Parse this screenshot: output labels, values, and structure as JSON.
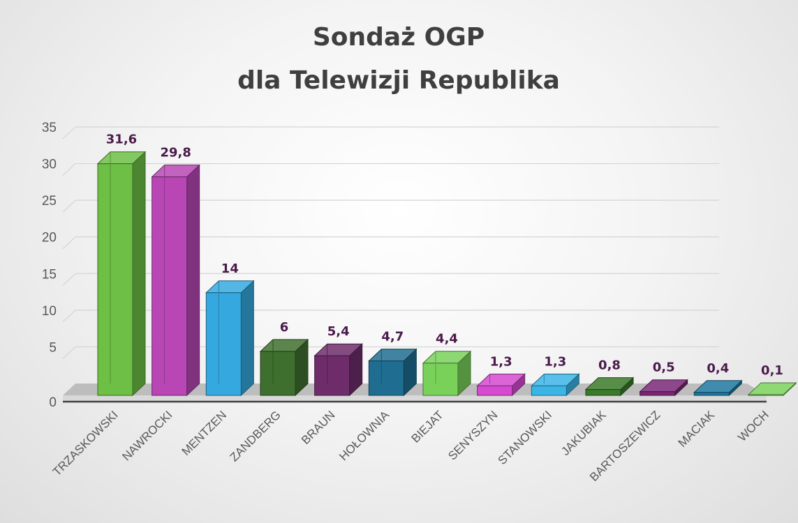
{
  "chart_data": {
    "type": "bar",
    "title": [
      "Sondaż OGP",
      "dla Telewizji Republika"
    ],
    "xlabel": "",
    "ylabel": "",
    "ylim": [
      0,
      35
    ],
    "yticks": [
      "0",
      "5",
      "10",
      "15",
      "20",
      "25",
      "30",
      "35"
    ],
    "grid": true,
    "categories": [
      "TRZASKOWSKI",
      "NAWROCKI",
      "MENTZEN",
      "ZANDBERG",
      "BRAUN",
      "HOŁOWNIA",
      "BIEJAT",
      "SENYSZYN",
      "STANOWSKI",
      "JAKUBIAK",
      "BARTOSZEWICZ",
      "MACIAK",
      "WOCH"
    ],
    "values": [
      31.6,
      29.8,
      14,
      6,
      5.4,
      4.7,
      4.4,
      1.3,
      1.3,
      0.8,
      0.5,
      0.4,
      0.1
    ],
    "value_labels": [
      "31,6",
      "29,8",
      "14",
      "6",
      "5,4",
      "4,7",
      "4,4",
      "1,3",
      "1,3",
      "0,8",
      "0,5",
      "0,4",
      "0,1"
    ],
    "colors": [
      "#6dbf45",
      "#b847b5",
      "#35a9df",
      "#3f6f2e",
      "#6e2c6b",
      "#1f6e91",
      "#79d15a",
      "#d54ad0",
      "#3ab5e6",
      "#3a7a2a",
      "#7a2775",
      "#1d78a0",
      "#7ad25a"
    ]
  }
}
